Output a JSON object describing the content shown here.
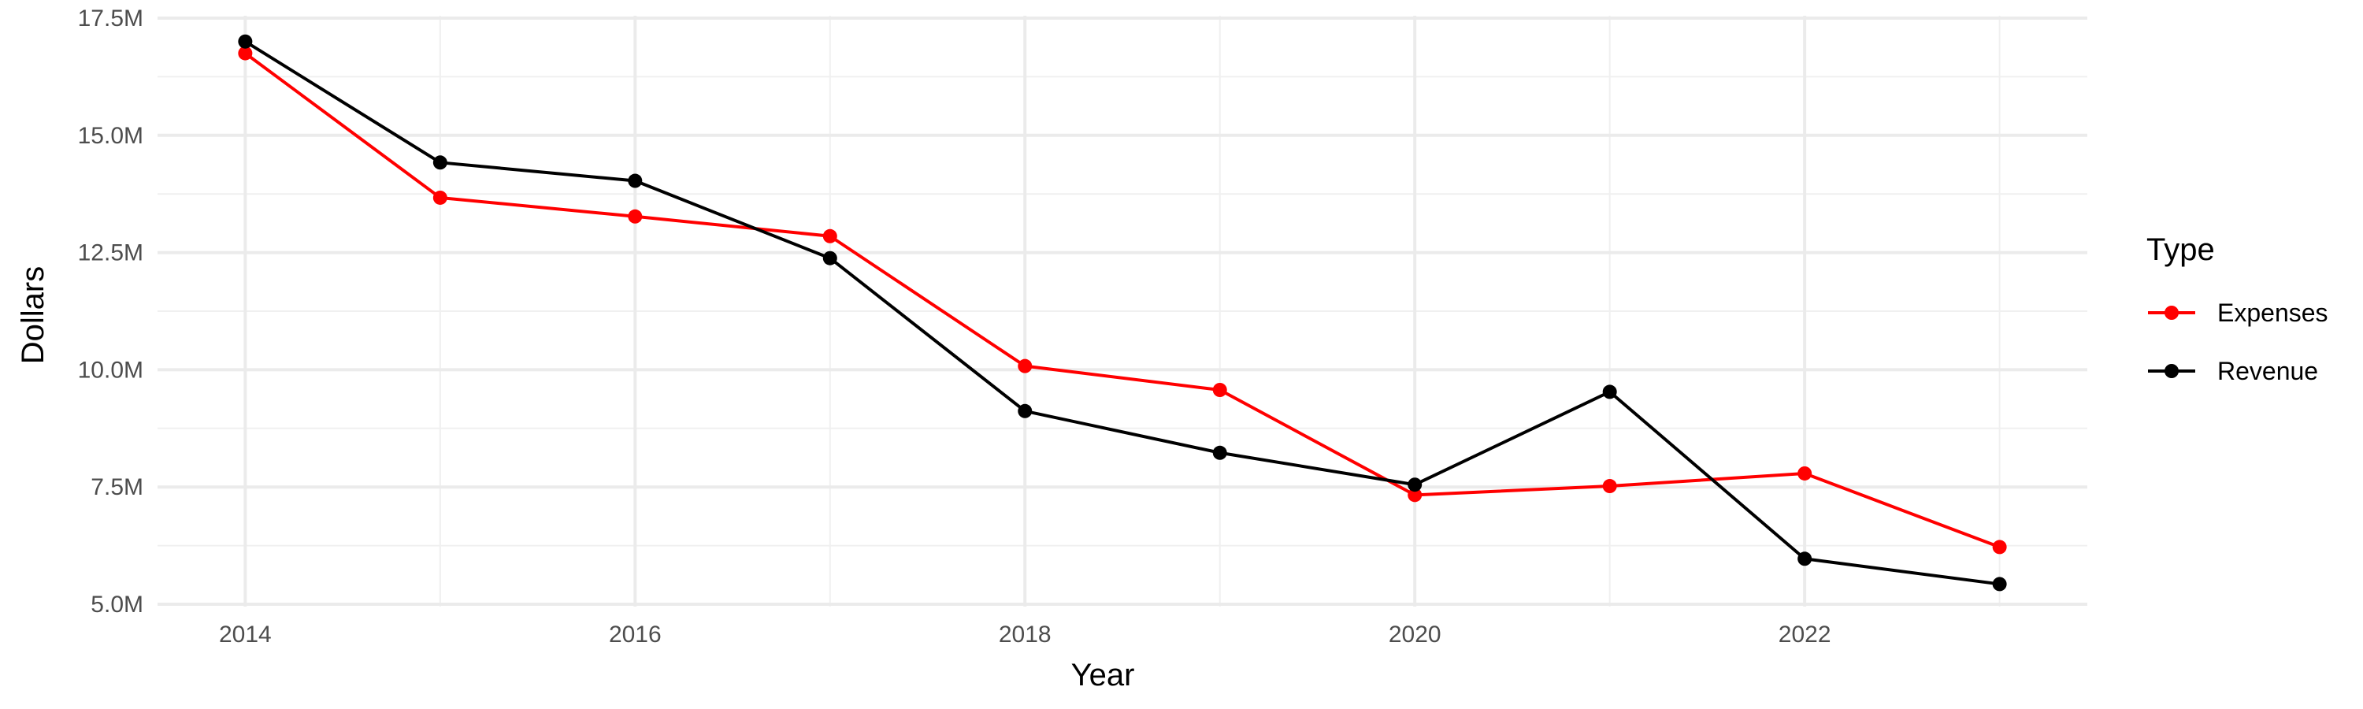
{
  "chart_data": {
    "type": "line",
    "xlabel": "Year",
    "ylabel": "Dollars",
    "x": [
      2014,
      2015,
      2016,
      2017,
      2018,
      2019,
      2020,
      2021,
      2022,
      2023
    ],
    "xticks": [
      2014,
      2016,
      2018,
      2020,
      2022
    ],
    "xtick_labels": [
      "2014",
      "2016",
      "2018",
      "2020",
      "2022"
    ],
    "xlim": [
      2013.55,
      2023.45
    ],
    "ylim": [
      4.95,
      17.55
    ],
    "yticks": [
      5.0,
      7.5,
      10.0,
      12.5,
      15.0,
      17.5
    ],
    "ytick_labels": [
      "5.0M",
      "7.5M",
      "10.0M",
      "12.5M",
      "15.0M",
      "17.5M"
    ],
    "yunit": "M",
    "grid": true,
    "legend": {
      "title": "Type",
      "placement": "right"
    },
    "series": [
      {
        "name": "Expenses",
        "color": "#ff0000",
        "values": [
          16.75,
          13.67,
          13.27,
          12.85,
          10.08,
          9.57,
          7.33,
          7.52,
          7.79,
          6.22
        ]
      },
      {
        "name": "Revenue",
        "color": "#000000",
        "values": [
          17.0,
          14.42,
          14.03,
          12.38,
          9.12,
          8.23,
          7.55,
          9.53,
          5.97,
          5.43
        ]
      }
    ]
  }
}
